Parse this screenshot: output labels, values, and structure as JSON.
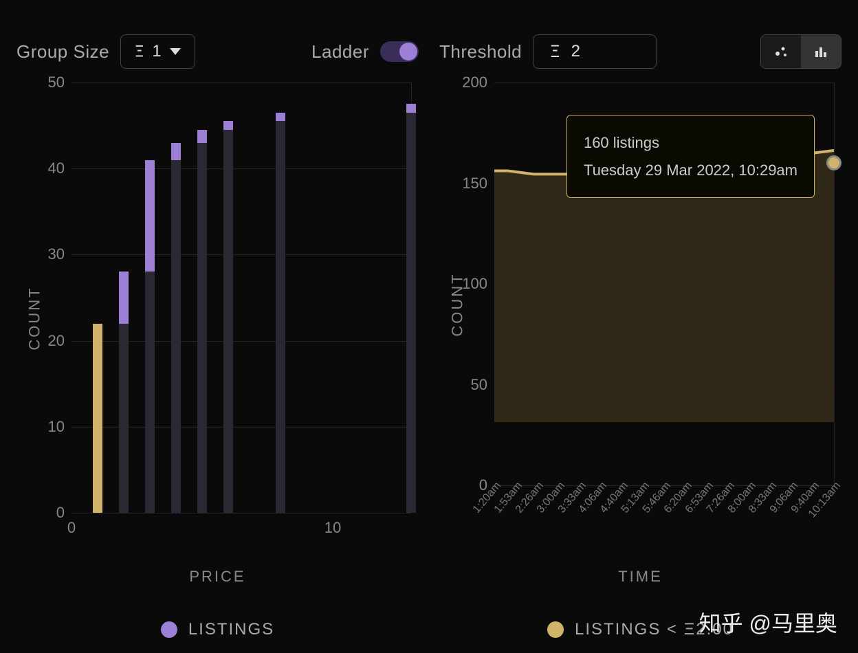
{
  "left": {
    "controls": {
      "group_size_label": "Group Size",
      "group_size_value": "1",
      "ladder_label": "Ladder",
      "ladder_on": true
    },
    "chart": {
      "type": "bar",
      "y_label": "COUNT",
      "x_label": "PRICE",
      "ylim": [
        0,
        50
      ],
      "y_ticks": [
        0,
        10,
        20,
        30,
        40,
        50
      ],
      "x_ticks": [
        0,
        10
      ],
      "x_domain": [
        0,
        13
      ],
      "bars": [
        {
          "x": 1,
          "stem": 0,
          "top": 22,
          "stem_color": "#d1b36a",
          "top_color": "#d1b36a"
        },
        {
          "x": 2,
          "stem": 22,
          "top": 28,
          "stem_color": "#2a2832",
          "top_color": "#9d7fd6"
        },
        {
          "x": 3,
          "stem": 28,
          "top": 41,
          "stem_color": "#2a2832",
          "top_color": "#9d7fd6"
        },
        {
          "x": 4,
          "stem": 41,
          "top": 43,
          "stem_color": "#2a2832",
          "top_color": "#9d7fd6"
        },
        {
          "x": 5,
          "stem": 43,
          "top": 44.5,
          "stem_color": "#2a2832",
          "top_color": "#9d7fd6"
        },
        {
          "x": 6,
          "stem": 44.5,
          "top": 45.5,
          "stem_color": "#2a2832",
          "top_color": "#9d7fd6"
        },
        {
          "x": 8,
          "stem": 45.5,
          "top": 46.5,
          "stem_color": "#2a2832",
          "top_color": "#9d7fd6"
        },
        {
          "x": 13,
          "stem": 46.5,
          "top": 47.5,
          "stem_color": "#2a2832",
          "top_color": "#9d7fd6"
        }
      ],
      "legend": {
        "label": "LISTINGS",
        "color": "#9d7fd6"
      }
    }
  },
  "right": {
    "controls": {
      "threshold_label": "Threshold",
      "threshold_value": "2"
    },
    "chart": {
      "type": "area",
      "y_label": "COUNT",
      "x_label": "TIME",
      "ylim": [
        0,
        200
      ],
      "y_ticks": [
        0,
        50,
        100,
        150,
        200
      ],
      "x_ticks": [
        "1:20am",
        "1:53am",
        "2:26am",
        "3:00am",
        "3:33am",
        "4:06am",
        "4:40am",
        "5:13am",
        "5:46am",
        "6:20am",
        "6:53am",
        "7:26am",
        "8:00am",
        "8:33am",
        "9:06am",
        "9:40am",
        "10:13am"
      ],
      "line_color": "#d1b36a",
      "fill_color": "rgba(120,100,50,0.35)",
      "series": [
        148,
        148,
        147,
        146,
        146,
        146,
        146,
        147,
        147,
        150,
        149,
        150,
        150,
        151,
        151,
        151,
        151,
        152,
        152,
        152,
        153,
        152,
        152,
        153,
        158,
        159,
        160
      ],
      "tooltip": {
        "line1": "160 listings",
        "line2": "Tuesday 29 Mar 2022, 10:29am",
        "point_color": "#d1b36a"
      },
      "legend": {
        "label": "LISTINGS < Ξ2.00",
        "color": "#d1b36a"
      }
    }
  },
  "colors": {
    "background": "#0a0a0a",
    "text_muted": "#888",
    "grid": "#252525",
    "purple": "#9d7fd6",
    "gold": "#d1b36a",
    "bar_dark": "#2a2832"
  },
  "watermark": "知乎 @马里奥",
  "eth_symbol": "Ξ"
}
